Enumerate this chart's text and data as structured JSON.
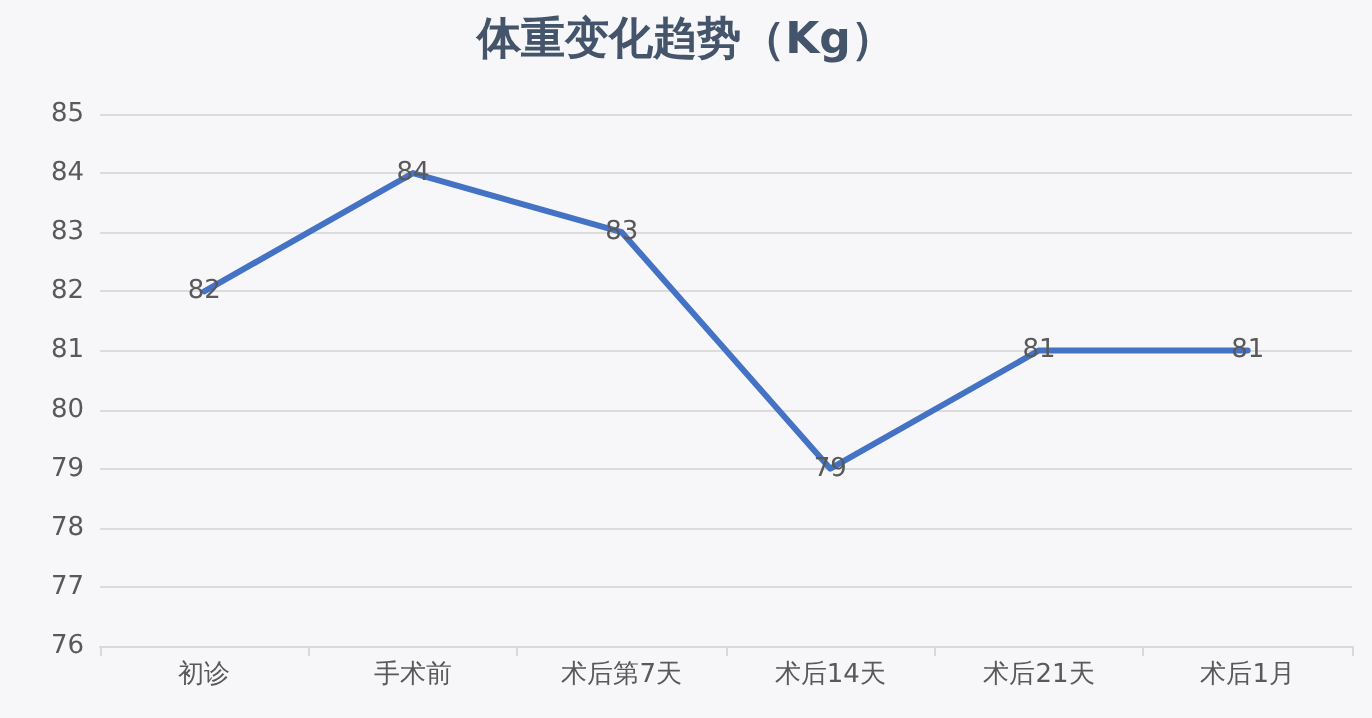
{
  "chart_data": {
    "type": "line",
    "title": "体重变化趋势（Kg）",
    "categories": [
      "初诊",
      "手术前",
      "术后第7天",
      "术后14天",
      "术后21天",
      "术后1月"
    ],
    "values": [
      82,
      84,
      83,
      79,
      81,
      81
    ],
    "color": "#4472c4",
    "ylim": [
      76,
      85
    ],
    "yticks": [
      76,
      77,
      78,
      79,
      80,
      81,
      82,
      83,
      84,
      85
    ],
    "grid": "y",
    "data_labels": true,
    "marker": "none",
    "line_style": "solid"
  }
}
